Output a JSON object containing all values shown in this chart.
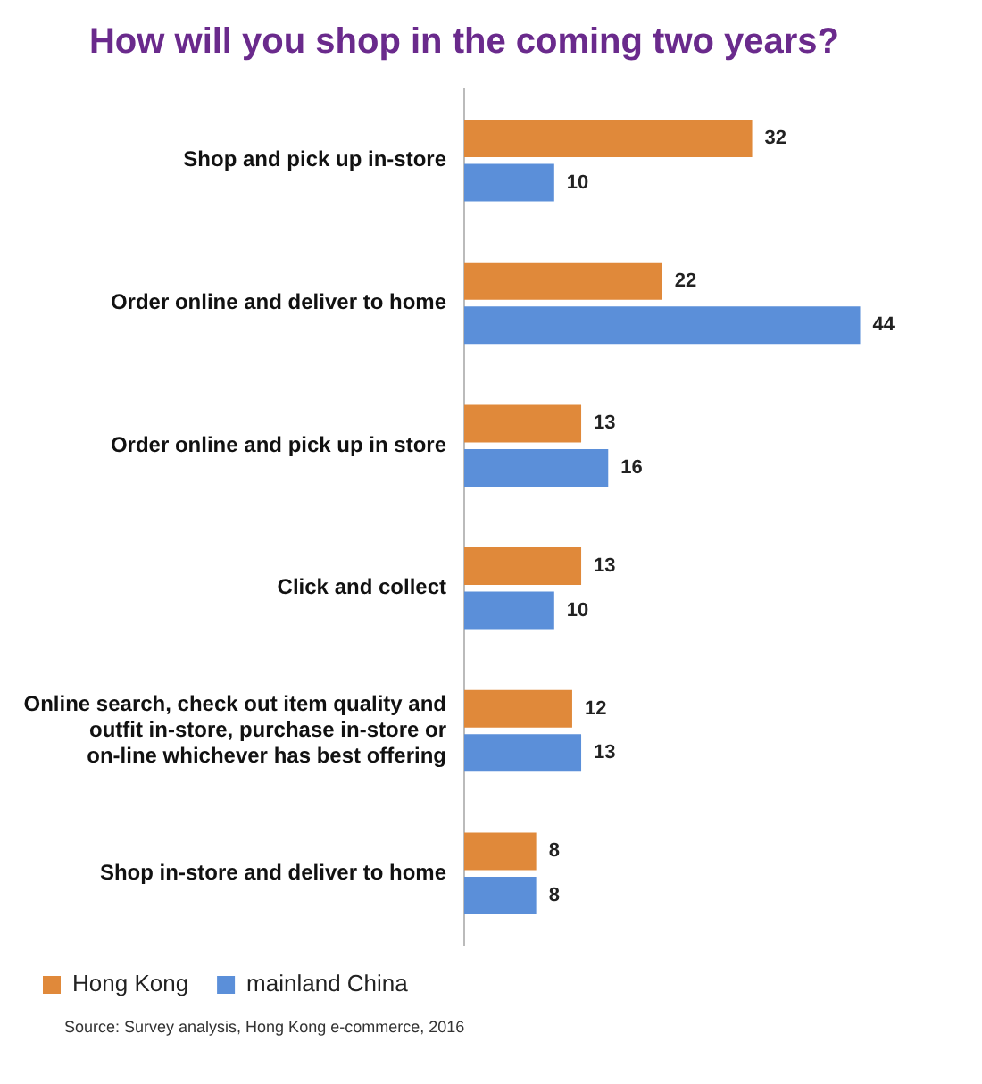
{
  "chart_data": {
    "type": "bar",
    "orientation": "horizontal",
    "title": "How will you shop in the coming two years?",
    "categories": [
      "Shop and pick up in-store",
      "Order online and deliver to home",
      "Order online and pick up in store",
      "Click and collect",
      "Online search, check out item quality and outfit in-store, purchase in-store or on-line whichever has best offering",
      "Shop in-store and deliver to home"
    ],
    "series": [
      {
        "name": "Hong Kong",
        "color": "#e0893a",
        "values": [
          32,
          22,
          13,
          13,
          12,
          8
        ]
      },
      {
        "name": "mainland China",
        "color": "#5b8fd9",
        "values": [
          10,
          44,
          16,
          10,
          13,
          8
        ]
      }
    ],
    "data_labels": true,
    "legend": "bottom",
    "annotations": [
      "Source: Survey analysis, Hong Kong e-commerce, 2016"
    ]
  }
}
